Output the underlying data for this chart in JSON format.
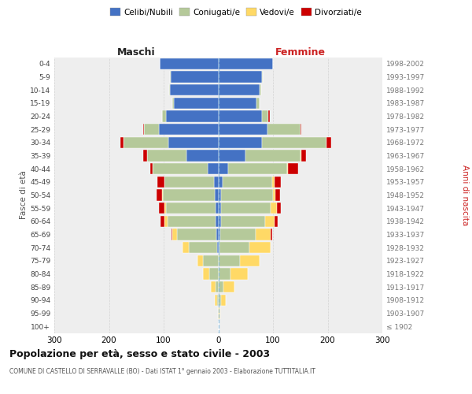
{
  "age_groups": [
    "100+",
    "95-99",
    "90-94",
    "85-89",
    "80-84",
    "75-79",
    "70-74",
    "65-69",
    "60-64",
    "55-59",
    "50-54",
    "45-49",
    "40-44",
    "35-39",
    "30-34",
    "25-29",
    "20-24",
    "15-19",
    "10-14",
    "5-9",
    "0-4"
  ],
  "birth_years": [
    "≤ 1902",
    "1903-1907",
    "1908-1912",
    "1913-1917",
    "1918-1922",
    "1923-1927",
    "1928-1932",
    "1933-1937",
    "1938-1942",
    "1943-1947",
    "1948-1952",
    "1953-1957",
    "1958-1962",
    "1963-1967",
    "1968-1972",
    "1973-1977",
    "1978-1982",
    "1983-1987",
    "1988-1992",
    "1993-1997",
    "1998-2002"
  ],
  "male_celibi": [
    0,
    0,
    0,
    0,
    0,
    0,
    2,
    4,
    5,
    5,
    6,
    8,
    20,
    58,
    92,
    108,
    95,
    82,
    88,
    87,
    107
  ],
  "male_coniugati": [
    0,
    0,
    2,
    5,
    16,
    28,
    52,
    72,
    88,
    90,
    95,
    90,
    100,
    72,
    82,
    28,
    8,
    2,
    2,
    2,
    0
  ],
  "male_vedovi": [
    0,
    1,
    4,
    8,
    12,
    10,
    12,
    8,
    5,
    3,
    2,
    1,
    0,
    0,
    0,
    0,
    0,
    0,
    0,
    0,
    0
  ],
  "male_divorziati": [
    0,
    0,
    0,
    0,
    0,
    0,
    0,
    2,
    8,
    10,
    10,
    12,
    5,
    8,
    5,
    2,
    0,
    0,
    0,
    0,
    0
  ],
  "female_nubili": [
    0,
    0,
    0,
    0,
    0,
    0,
    2,
    3,
    5,
    5,
    5,
    8,
    18,
    50,
    80,
    90,
    80,
    70,
    75,
    80,
    100
  ],
  "female_coniugate": [
    0,
    2,
    5,
    10,
    22,
    40,
    55,
    65,
    80,
    90,
    95,
    90,
    108,
    100,
    118,
    60,
    12,
    5,
    3,
    2,
    0
  ],
  "female_vedove": [
    1,
    2,
    8,
    20,
    32,
    35,
    38,
    28,
    18,
    12,
    5,
    5,
    2,
    2,
    0,
    0,
    0,
    0,
    0,
    0,
    0
  ],
  "female_divorziate": [
    0,
    0,
    0,
    0,
    0,
    0,
    0,
    2,
    5,
    8,
    8,
    12,
    18,
    8,
    8,
    2,
    2,
    0,
    0,
    0,
    0
  ],
  "color_celibi": "#4472c4",
  "color_coniugati": "#b5c99a",
  "color_vedovi": "#ffd966",
  "color_divorziati": "#cc0000",
  "xlim": 300,
  "bg_color": "#eeeeee",
  "grid_color": "#cccccc",
  "title": "Popolazione per età, sesso e stato civile - 2003",
  "subtitle": "COMUNE DI CASTELLO DI SERRAVALLE (BO) - Dati ISTAT 1° gennaio 2003 - Elaborazione TUTTITALIA.IT",
  "ylabel_left": "Fasce di età",
  "ylabel_right": "Anni di nascita",
  "label_maschi": "Maschi",
  "label_femmine": "Femmine",
  "legend_labels": [
    "Celibi/Nubili",
    "Coniugati/e",
    "Vedovi/e",
    "Divorziati/e"
  ]
}
